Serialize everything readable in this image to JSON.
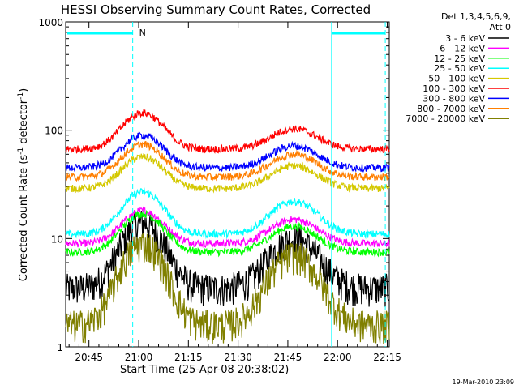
{
  "chart_data": {
    "type": "line",
    "title": "HESSI Observing Summary Count Rates, Corrected",
    "xlabel": "Start Time (25-Apr-08 20:38:02)",
    "ylabel": "Corrected Count Rate (s",
    "ylabel_sup1": "-1",
    "ylabel_mid": " detector",
    "ylabel_sup2": "-1",
    "ylabel_end": ")",
    "yscale": "log",
    "ylim": [
      1,
      1000
    ],
    "xlim_minutes": [
      20.633,
      22.26
    ],
    "x_ticks": [
      "20:45",
      "21:00",
      "21:15",
      "21:30",
      "21:45",
      "22:00",
      "22:15"
    ],
    "x_tick_hours": [
      20.75,
      21.0,
      21.25,
      21.5,
      21.75,
      22.0,
      22.25
    ],
    "y_ticks": [
      "1",
      "10",
      "100",
      "1000"
    ],
    "y_tick_values": [
      1,
      10,
      100,
      1000
    ],
    "legend_header": [
      "Det 1,3,4,5,6,9,",
      "Att 0"
    ],
    "legend_placement": "right",
    "night_marker": "N",
    "night_start_hour": 20.97,
    "night_end_hour": 22.24,
    "saa_bar_left": [
      20.633,
      20.97
    ],
    "saa_bar_right": [
      21.97,
      22.24
    ],
    "saa_mid_marker_hour": 21.97,
    "series": [
      {
        "name": "3 - 6 keV",
        "color": "#000000",
        "base": 3.5,
        "peak1": 14,
        "peak2": 10
      },
      {
        "name": "6 - 12 keV",
        "color": "#ff00ff",
        "base": 9,
        "peak1": 18,
        "peak2": 15
      },
      {
        "name": "12 - 25 keV",
        "color": "#00ff00",
        "base": 7.5,
        "peak1": 17,
        "peak2": 13
      },
      {
        "name": "25 - 50 keV",
        "color": "#00ffff",
        "base": 11,
        "peak1": 27,
        "peak2": 22
      },
      {
        "name": "50 - 100 keV",
        "color": "#d4c800",
        "base": 29,
        "peak1": 57,
        "peak2": 47
      },
      {
        "name": "100 - 300 keV",
        "color": "#ff0000",
        "base": 67,
        "peak1": 145,
        "peak2": 103
      },
      {
        "name": "300 - 800 keV",
        "color": "#0000ff",
        "base": 45,
        "peak1": 90,
        "peak2": 72
      },
      {
        "name": "800 - 7000 keV",
        "color": "#ff7f00",
        "base": 37,
        "peak1": 74,
        "peak2": 60
      },
      {
        "name": "7000 - 20000 keV",
        "color": "#808000",
        "base": 1.6,
        "peak1": 9,
        "peak2": 7
      }
    ],
    "grid": false,
    "marker_color": "#00ffff"
  },
  "footer": "19-Mar-2010 23:09"
}
